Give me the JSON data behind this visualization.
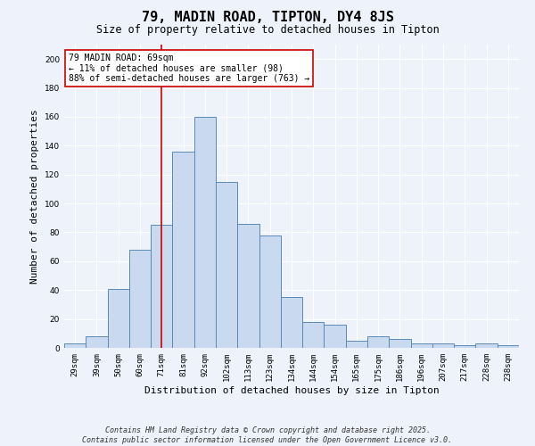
{
  "title": "79, MADIN ROAD, TIPTON, DY4 8JS",
  "subtitle": "Size of property relative to detached houses in Tipton",
  "xlabel": "Distribution of detached houses by size in Tipton",
  "ylabel": "Number of detached properties",
  "bar_labels": [
    "29sqm",
    "39sqm",
    "50sqm",
    "60sqm",
    "71sqm",
    "81sqm",
    "92sqm",
    "102sqm",
    "113sqm",
    "123sqm",
    "134sqm",
    "144sqm",
    "154sqm",
    "165sqm",
    "175sqm",
    "186sqm",
    "196sqm",
    "207sqm",
    "217sqm",
    "228sqm",
    "238sqm"
  ],
  "bar_values": [
    3,
    8,
    41,
    68,
    85,
    136,
    160,
    115,
    86,
    78,
    35,
    18,
    16,
    5,
    8,
    6,
    3,
    3,
    2,
    3,
    2
  ],
  "bar_color": "#c9d9f0",
  "bar_edge_color": "#5a8ab5",
  "ylim": [
    0,
    210
  ],
  "yticks": [
    0,
    20,
    40,
    60,
    80,
    100,
    120,
    140,
    160,
    180,
    200
  ],
  "vline_x": 4,
  "vline_color": "#cc0000",
  "annotation_text": "79 MADIN ROAD: 69sqm\n← 11% of detached houses are smaller (98)\n88% of semi-detached houses are larger (763) →",
  "annotation_box_color": "#ffffff",
  "annotation_box_edge": "#cc0000",
  "footer_line1": "Contains HM Land Registry data © Crown copyright and database right 2025.",
  "footer_line2": "Contains public sector information licensed under the Open Government Licence v3.0.",
  "bg_color": "#eef2fb",
  "title_fontsize": 11,
  "subtitle_fontsize": 8.5,
  "ylabel_fontsize": 8,
  "xlabel_fontsize": 8,
  "tick_fontsize": 6.5,
  "annotation_fontsize": 7,
  "footer_fontsize": 6
}
